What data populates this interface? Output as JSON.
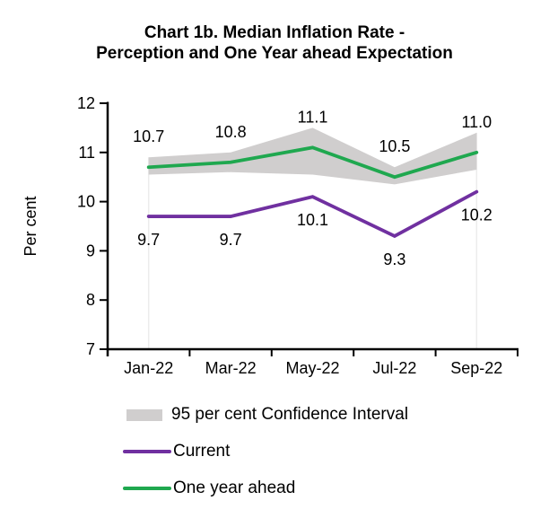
{
  "title": {
    "line1": "Chart 1b. Median Inflation Rate -",
    "line2": "Perception and One Year ahead Expectation"
  },
  "legend": {
    "items": [
      {
        "label": "95 per cent Confidence Interval",
        "swatch": "band",
        "color": "#D0CECE"
      },
      {
        "label": "Current",
        "swatch": "line",
        "color": "#7030A0"
      },
      {
        "label": "One year ahead",
        "swatch": "line",
        "color": "#1FA84F"
      }
    ]
  },
  "chart_data": {
    "type": "line",
    "title": "Chart 1b. Median Inflation Rate - Perception and One Year ahead Expectation",
    "categories": [
      "Jan-22",
      "Mar-22",
      "May-22",
      "Jul-22",
      "Sep-22"
    ],
    "series": [
      {
        "name": "One year ahead",
        "color": "#1FA84F",
        "values": [
          10.7,
          10.8,
          11.1,
          10.5,
          11.0
        ],
        "point_labels": [
          "10.7",
          "10.8",
          "11.1",
          "10.5",
          "11.0"
        ],
        "label_side": "above"
      },
      {
        "name": "Current",
        "color": "#7030A0",
        "values": [
          9.7,
          9.7,
          10.1,
          9.3,
          10.2
        ],
        "point_labels": [
          "9.7",
          "9.7",
          "10.1",
          "9.3",
          "10.2"
        ],
        "label_side": "below"
      }
    ],
    "band": {
      "name": "95 per cent Confidence Interval",
      "series_ref": "One year ahead",
      "color": "#D0CECE",
      "lower": [
        10.55,
        10.6,
        10.55,
        10.35,
        10.65
      ],
      "upper": [
        10.9,
        11.0,
        11.5,
        10.7,
        11.4
      ]
    },
    "xlabel": "",
    "ylabel": "Per cent",
    "ylim": [
      7,
      12
    ],
    "yticks": [
      7,
      8,
      9,
      10,
      11,
      12
    ],
    "grid": false,
    "axis_color": "#000000",
    "drop_line_color": "#ECECEC",
    "legend_position": "bottom-left"
  }
}
